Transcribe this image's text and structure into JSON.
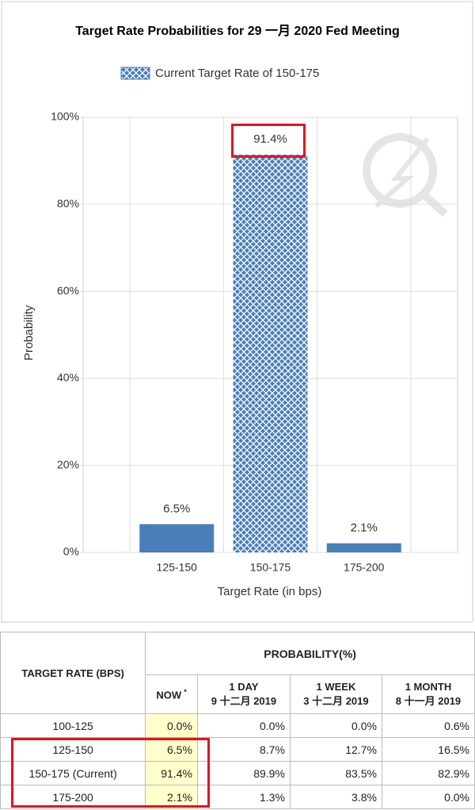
{
  "chart_data": {
    "type": "bar",
    "title": "Target Rate Probabilities for 29 一月 2020  Fed Meeting",
    "legend": {
      "label": "Current Target Rate of 150-175",
      "style": "hatched"
    },
    "categories": [
      "125-150",
      "150-175",
      "175-200"
    ],
    "values": [
      6.5,
      91.4,
      2.1
    ],
    "value_labels": [
      "6.5%",
      "91.4%",
      "2.1%"
    ],
    "bar_styles": [
      "solid",
      "hatched",
      "solid"
    ],
    "color": "#4a7ebb",
    "xlabel": "Target Rate (in bps)",
    "ylabel": "Probability",
    "ylim": [
      0,
      100
    ],
    "yticks": [
      {
        "value": 0,
        "label": "0%"
      },
      {
        "value": 20,
        "label": "20%"
      },
      {
        "value": 40,
        "label": "40%"
      },
      {
        "value": 60,
        "label": "60%"
      },
      {
        "value": 80,
        "label": "80%"
      },
      {
        "value": 100,
        "label": "100%"
      }
    ],
    "grid": true
  },
  "table": {
    "header": {
      "rate": "TARGET RATE (BPS)",
      "probability": "PROBABILITY(%)",
      "columns": [
        {
          "label": "NOW",
          "note": "*"
        },
        {
          "label": "1 DAY",
          "date": "9 十二月 2019"
        },
        {
          "label": "1 WEEK",
          "date": "3 十二月 2019"
        },
        {
          "label": "1 MONTH",
          "date": "8 十一月 2019"
        }
      ]
    },
    "rows": [
      [
        "100-125",
        "0.0%",
        "0.0%",
        "0.0%",
        "0.6%"
      ],
      [
        "125-150",
        "6.5%",
        "8.7%",
        "12.7%",
        "16.5%"
      ],
      [
        "150-175 (Current)",
        "91.4%",
        "89.9%",
        "83.5%",
        "82.9%"
      ],
      [
        "175-200",
        "2.1%",
        "1.3%",
        "3.8%",
        "0.0%"
      ]
    ]
  }
}
